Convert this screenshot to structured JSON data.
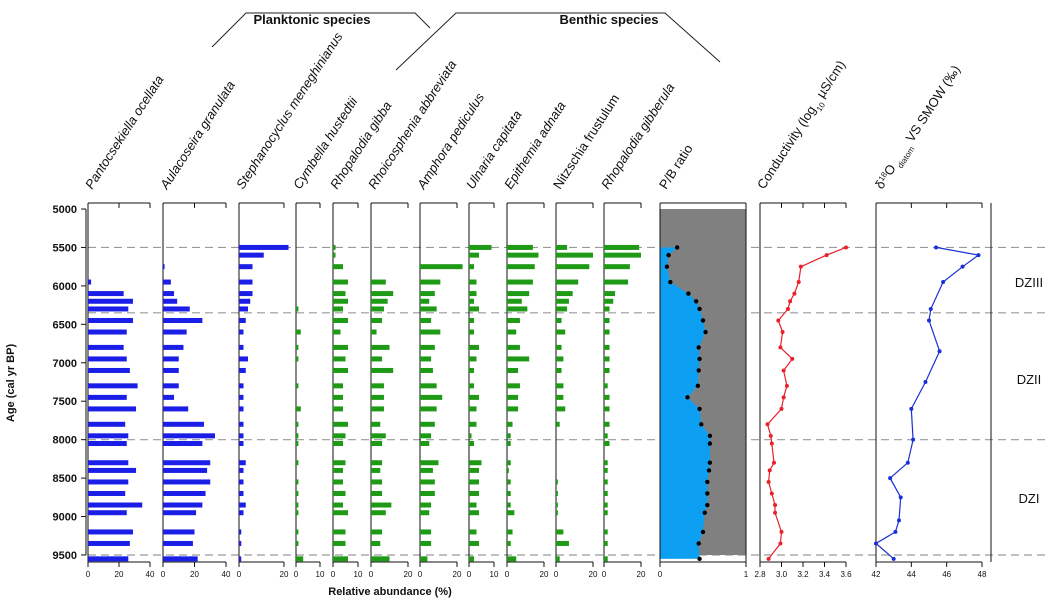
{
  "chart_data": {
    "type": "bar",
    "ylabel": "Age (cal yr BP)",
    "xlabel": "Relative abundance (%)",
    "yticks": [
      "5000",
      "5500",
      "6000",
      "6500",
      "7000",
      "7500",
      "8000",
      "8500",
      "9000",
      "9500"
    ],
    "ylim": [
      5000,
      9500
    ],
    "ages": [
      5500,
      5600,
      5750,
      5950,
      6100,
      6200,
      6300,
      6450,
      6600,
      6800,
      6950,
      7100,
      7300,
      7450,
      7600,
      7800,
      7950,
      8050,
      8300,
      8400,
      8550,
      8700,
      8850,
      8950,
      9200,
      9350,
      9550
    ],
    "groups": [
      {
        "label": "Planktonic species"
      },
      {
        "label": "Benthic species"
      }
    ],
    "zones": [
      "DZIII",
      "DZII",
      "DZI"
    ],
    "zone_boundaries": [
      5500,
      6350,
      8000,
      9500
    ],
    "taxa": [
      {
        "name": "Pantocsekiella ocellata",
        "italic": true,
        "xlim": [
          0,
          40
        ],
        "xticks": [
          "0",
          "20",
          "40"
        ],
        "values": [
          0,
          0,
          0,
          2,
          23,
          29,
          26,
          29,
          25,
          23,
          25,
          27,
          32,
          25,
          31,
          24,
          26,
          25,
          26,
          31,
          26,
          24,
          35,
          25,
          29,
          27,
          26
        ]
      },
      {
        "name": "Aulacoseira granulata",
        "italic": true,
        "xlim": [
          0,
          40
        ],
        "xticks": [
          "0",
          "20",
          "40"
        ],
        "values": [
          0,
          0,
          1,
          5,
          7,
          9,
          17,
          25,
          15,
          13,
          10,
          10,
          10,
          7,
          16,
          26,
          33,
          25,
          30,
          28,
          30,
          27,
          25,
          21,
          20,
          19,
          22
        ]
      },
      {
        "name": "Stephanocyclus meneghinianus",
        "italic": true,
        "xlim": [
          0,
          20
        ],
        "xticks": [
          "0",
          "20"
        ],
        "values": [
          22,
          11,
          6,
          6,
          6,
          5,
          4,
          3,
          2,
          2,
          4,
          3,
          2,
          2,
          2,
          2,
          2,
          2,
          3,
          2,
          2,
          2,
          3,
          2,
          1,
          1,
          1
        ]
      },
      {
        "name": "Cymbella hustedtii",
        "italic": true,
        "xlim": [
          0,
          10
        ],
        "xticks": [
          "0",
          "10"
        ],
        "values": [
          0,
          0,
          0,
          0,
          0,
          0,
          1,
          0,
          2,
          1,
          1,
          0,
          1,
          0,
          2,
          1,
          1,
          1,
          1,
          0,
          1,
          1,
          1,
          1,
          1,
          1,
          3
        ]
      },
      {
        "name": "Rhopalodia gibba",
        "italic": true,
        "xlim": [
          0,
          10
        ],
        "xticks": [
          "0",
          "10"
        ],
        "values": [
          1,
          1,
          4,
          6,
          5,
          6,
          4,
          6,
          3,
          6,
          5,
          6,
          4,
          4,
          4,
          6,
          5,
          4,
          5,
          4,
          4,
          5,
          4,
          6,
          5,
          5,
          6
        ]
      },
      {
        "name": "Rhoicosphenia abbreviata",
        "italic": true,
        "xlim": [
          0,
          20
        ],
        "xticks": [
          "0",
          "20"
        ],
        "values": [
          0,
          0,
          0,
          8,
          12,
          9,
          7,
          6,
          3,
          10,
          6,
          12,
          7,
          7,
          7,
          5,
          8,
          6,
          6,
          5,
          6,
          6,
          11,
          8,
          6,
          5,
          10
        ]
      },
      {
        "name": "Amphora pediculus",
        "italic": true,
        "xlim": [
          0,
          20
        ],
        "xticks": [
          "0",
          "20"
        ],
        "values": [
          0,
          0,
          23,
          11,
          8,
          5,
          9,
          6,
          11,
          8,
          6,
          7,
          9,
          12,
          9,
          8,
          6,
          5,
          10,
          7,
          8,
          8,
          6,
          5,
          6,
          6,
          4
        ]
      },
      {
        "name": "Ulnaria capitata",
        "italic": true,
        "xlim": [
          0,
          10
        ],
        "xticks": [
          "0",
          "10"
        ],
        "values": [
          9,
          4,
          2,
          3,
          3,
          2,
          4,
          2,
          2,
          4,
          3,
          2,
          2,
          4,
          3,
          3,
          1,
          2,
          5,
          4,
          4,
          4,
          3,
          4,
          3,
          4,
          2
        ]
      },
      {
        "name": "Epithemia adnata",
        "italic": true,
        "xlim": [
          0,
          20
        ],
        "xticks": [
          "0",
          "20"
        ],
        "values": [
          14,
          17,
          15,
          14,
          12,
          8,
          11,
          7,
          5,
          7,
          12,
          6,
          7,
          6,
          6,
          3,
          2,
          2,
          2,
          1,
          2,
          2,
          2,
          4,
          3,
          2,
          5
        ]
      },
      {
        "name": "Nitzschia frustulum",
        "italic": false,
        "xlim": [
          0,
          20
        ],
        "xticks": [
          "0",
          "20"
        ],
        "values": [
          6,
          20,
          18,
          12,
          9,
          7,
          6,
          3,
          5,
          3,
          4,
          3,
          4,
          4,
          5,
          2,
          0,
          0,
          0,
          0,
          1,
          1,
          1,
          1,
          4,
          7,
          2
        ]
      },
      {
        "name": "Rhopalodia gibberula",
        "italic": true,
        "xlim": [
          0,
          20
        ],
        "xticks": [
          "0",
          "20"
        ],
        "values": [
          19,
          20,
          14,
          13,
          6,
          5,
          3,
          3,
          3,
          3,
          3,
          3,
          2,
          3,
          3,
          3,
          2,
          3,
          2,
          2,
          2,
          2,
          2,
          2,
          2,
          2,
          2
        ]
      }
    ],
    "pb": {
      "name": "P/B ratio",
      "xlim": [
        0,
        1
      ],
      "xticks": [
        "0",
        "1"
      ],
      "values": [
        0.2,
        0.1,
        0.08,
        0.12,
        0.33,
        0.42,
        0.46,
        0.5,
        0.53,
        0.45,
        0.46,
        0.45,
        0.44,
        0.32,
        0.46,
        0.48,
        0.58,
        0.58,
        0.58,
        0.57,
        0.55,
        0.55,
        0.55,
        0.52,
        0.5,
        0.45,
        0.46
      ],
      "colors": {
        "low": "#0d9ff2",
        "high": "#808080"
      }
    },
    "conductivity": {
      "label_parts": [
        "Conductivity (log",
        "10",
        " µS/cm)"
      ],
      "xlim": [
        2.8,
        3.6
      ],
      "xticks": [
        "2.8",
        "3.0",
        "3.2",
        "3.4",
        "3.6"
      ],
      "ages": [
        5500,
        5600,
        5750,
        5950,
        6100,
        6200,
        6300,
        6450,
        6600,
        6800,
        6950,
        7100,
        7300,
        7450,
        7600,
        7800,
        7950,
        8050,
        8300,
        8400,
        8550,
        8700,
        8850,
        8950,
        9200,
        9350,
        9550
      ],
      "values": [
        3.6,
        3.42,
        3.18,
        3.16,
        3.12,
        3.08,
        3.06,
        2.97,
        3.01,
        2.99,
        3.1,
        3.02,
        3.05,
        3.02,
        3.0,
        2.87,
        2.9,
        2.91,
        2.93,
        2.89,
        2.88,
        2.91,
        2.94,
        2.94,
        3.0,
        2.99,
        2.88
      ],
      "color": "#e8212a"
    },
    "d18o": {
      "label_parts": [
        "δ",
        "18",
        "O",
        " diatom",
        " VS SMOW (‰)"
      ],
      "xlim": [
        42,
        48
      ],
      "xticks": [
        "42",
        "44",
        "46",
        "48"
      ],
      "ages": [
        5500,
        5600,
        5750,
        5950,
        6300,
        6450,
        6850,
        7250,
        7600,
        8000,
        8300,
        8500,
        8750,
        9050,
        9200,
        9350,
        9550
      ],
      "values": [
        45.4,
        47.8,
        46.9,
        45.8,
        45.1,
        45.0,
        45.6,
        44.8,
        44.0,
        44.1,
        43.8,
        42.8,
        43.4,
        43.3,
        43.1,
        42.0,
        43.0
      ],
      "color": "#1a2fd6"
    },
    "bar_colors": {
      "planktonic": "#1a1ee6",
      "benthic": "#1f9a16"
    }
  }
}
